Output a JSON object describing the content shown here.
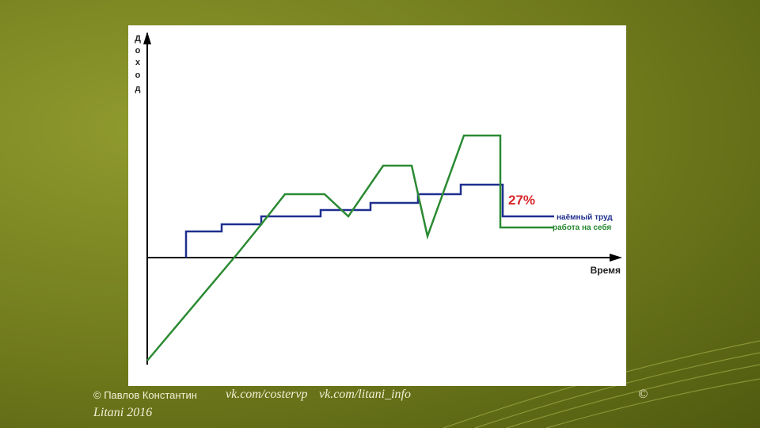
{
  "chart": {
    "y_label_letters": [
      "Д",
      "о",
      "х",
      "о",
      "д"
    ],
    "x_label": "Время",
    "annotation": "27%",
    "legend": [
      "наёмный труд",
      "работа на себя"
    ]
  },
  "footer": {
    "author": "© Павлов Константин",
    "links": [
      "vk.com/costervp",
      "vk.com/litani_info"
    ],
    "copyright": "©",
    "site": "Litani 2016"
  }
}
